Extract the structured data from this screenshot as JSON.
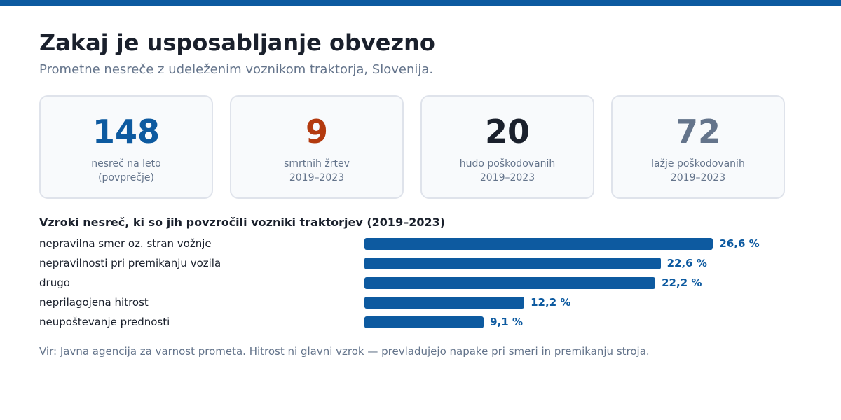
{
  "header": {
    "title": "Zakaj je usposabljanje obvezno",
    "subtitle": "Prometne nesreče z udeleženim voznikom traktorja, Slovenija."
  },
  "stats": [
    {
      "value": "148",
      "line1": "nesreč na leto",
      "line2": "(povprečje)",
      "color": "#0d5aa0"
    },
    {
      "value": "9",
      "line1": "smrtnih žrtev",
      "line2": "2019–2023",
      "color": "#b33a0f"
    },
    {
      "value": "20",
      "line1": "hudo poškodovanih",
      "line2": "2019–2023",
      "color": "#1a202c"
    },
    {
      "value": "72",
      "line1": "lažje poškodovanih",
      "line2": "2019–2023",
      "color": "#64748b"
    }
  ],
  "chart_data": {
    "type": "bar",
    "orientation": "horizontal",
    "title": "Vzroki nesreč, ki so jih povzročili vozniki traktorjev (2019–2023)",
    "categories": [
      "nepravilna smer oz. stran vožnje",
      "nepravilnosti pri premikanju vozila",
      "drugo",
      "neprilagojena hitrost",
      "neupoštevanje prednosti"
    ],
    "values": [
      26.6,
      22.6,
      22.2,
      12.2,
      9.1
    ],
    "value_labels": [
      "26,6 %",
      "22,6 %",
      "22,2 %",
      "12,2 %",
      "9,1 %"
    ],
    "unit": "%",
    "bar_color": "#0d5aa0",
    "grid": false
  },
  "footnote": "Vir: Javna agencija za varnost prometa. Hitrost ni glavni vzrok — prevladujejo napake pri smeri in premikanju stroja."
}
